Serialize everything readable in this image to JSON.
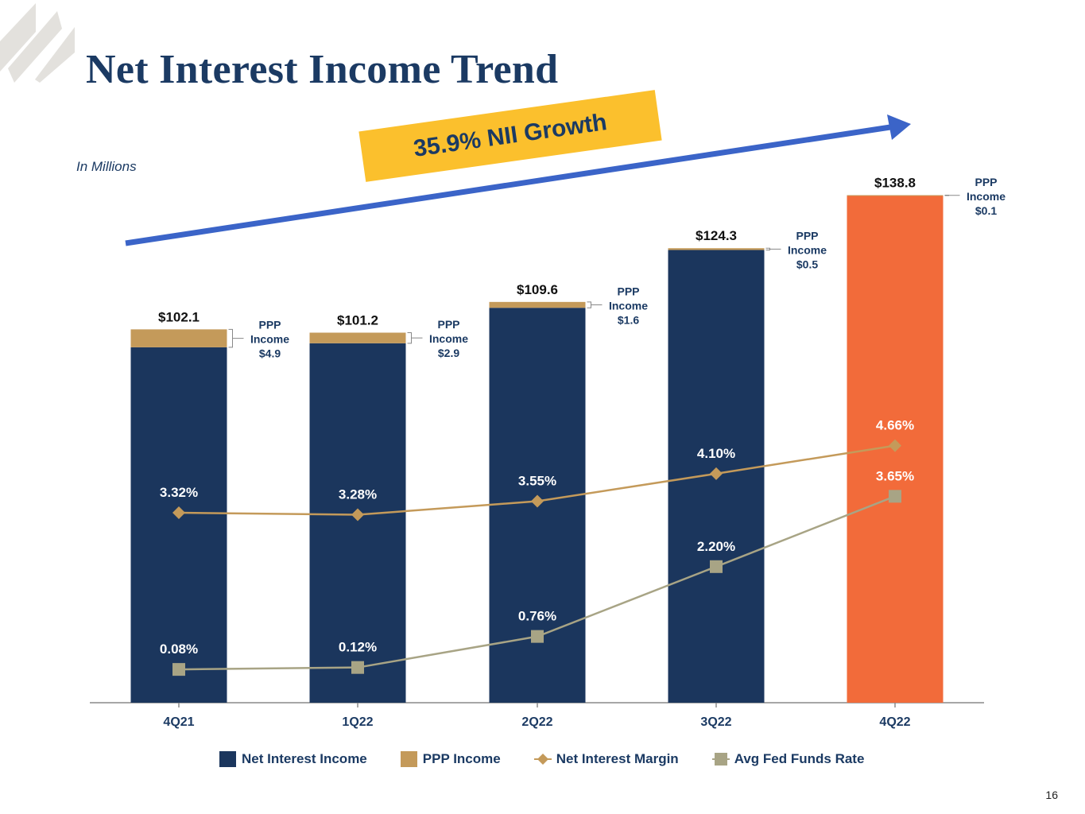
{
  "slide": {
    "title": "Net Interest Income Trend",
    "units_note": "In Millions",
    "growth_banner": "35.9% NII Growth",
    "page_number": "16"
  },
  "colors": {
    "navy": "#1b365d",
    "ppp": "#c49a5a",
    "highlight": "#f26b3a",
    "nim_line": "#c49a5a",
    "fed_line": "#a8a485",
    "banner": "#fbc02d",
    "arrow": "#3b64c8"
  },
  "chart_data": {
    "type": "bar",
    "stacked": true,
    "categories": [
      "4Q21",
      "1Q22",
      "2Q22",
      "3Q22",
      "4Q22"
    ],
    "ylim": [
      0,
      140
    ],
    "series": [
      {
        "name": "Net Interest Income",
        "values": [
          97.2,
          98.3,
          108.0,
          123.8,
          138.7
        ]
      },
      {
        "name": "PPP Income",
        "values": [
          4.9,
          2.9,
          1.6,
          0.5,
          0.1
        ]
      }
    ],
    "totals": [
      102.1,
      101.2,
      109.6,
      124.3,
      138.8
    ],
    "total_labels": [
      "$102.1",
      "$101.2",
      "$109.6",
      "$124.3",
      "$138.8"
    ],
    "ppp_labels": [
      {
        "line1": "PPP",
        "line2": "Income",
        "value": "$4.9"
      },
      {
        "line1": "PPP",
        "line2": "Income",
        "value": "$2.9"
      },
      {
        "line1": "PPP",
        "line2": "Income",
        "value": "$1.6"
      },
      {
        "line1": "PPP",
        "line2": "Income",
        "value": "$0.5"
      },
      {
        "line1": "PPP",
        "line2": "Income",
        "value": "$0.1"
      }
    ],
    "highlight_index": 4,
    "lines": [
      {
        "name": "Net Interest Margin",
        "marker": "diamond",
        "values": [
          3.32,
          3.28,
          3.55,
          4.1,
          4.66
        ],
        "labels": [
          "3.32%",
          "3.28%",
          "3.55%",
          "4.10%",
          "4.66%"
        ]
      },
      {
        "name": "Avg Fed Funds Rate",
        "marker": "square",
        "values": [
          0.08,
          0.12,
          0.76,
          2.2,
          3.65
        ],
        "labels": [
          "0.08%",
          "0.12%",
          "0.76%",
          "2.20%",
          "3.65%"
        ]
      }
    ],
    "legend": [
      {
        "name": "Net Interest Income",
        "color": "#1b365d",
        "marker": "square"
      },
      {
        "name": "PPP Income",
        "color": "#c49a5a",
        "marker": "square"
      },
      {
        "name": "Net Interest Margin",
        "color": "#c49a5a",
        "marker": "diamond-line"
      },
      {
        "name": "Avg Fed Funds Rate",
        "color": "#a8a485",
        "marker": "square-line"
      }
    ]
  }
}
